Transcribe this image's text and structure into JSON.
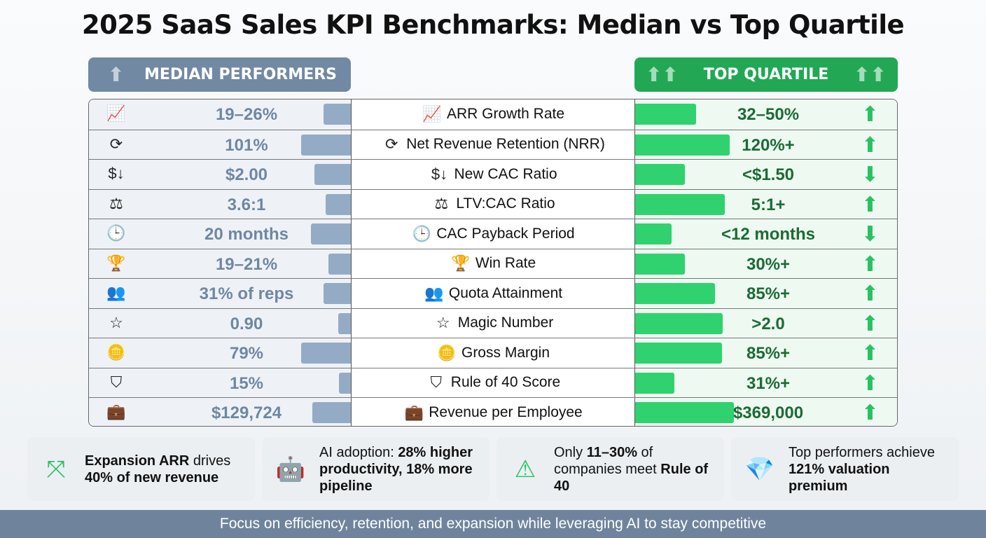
{
  "title": "2025 SaaS Sales KPI Benchmarks: Median vs Top Quartile",
  "headers": {
    "median": "MEDIAN PERFORMERS",
    "top": "TOP QUARTILE"
  },
  "colors": {
    "median": "#7289a3",
    "top": "#22a855",
    "median_bar": "#94abc5",
    "top_bar": "#2fd26f"
  },
  "rows": [
    {
      "icon": "growth-chart-icon",
      "glyph": "📈",
      "metric": "ARR Growth Rate",
      "median": "19–26%",
      "median_bar": 0.28,
      "top": "32–50%",
      "top_bar": 0.62,
      "direction": "up"
    },
    {
      "icon": "refresh-icon",
      "glyph": "⟳",
      "metric": "Net Revenue Retention (NRR)",
      "median": "101%",
      "median_bar": 0.51,
      "top": "120%+",
      "top_bar": 0.96,
      "direction": "up"
    },
    {
      "icon": "dollar-down-icon",
      "glyph": "$↓",
      "metric": "New CAC Ratio",
      "median": "$2.00",
      "median_bar": 0.37,
      "top": "<$1.50",
      "top_bar": 0.5,
      "direction": "down"
    },
    {
      "icon": "scale-icon",
      "glyph": "⚖",
      "metric": "LTV:CAC Ratio",
      "median": "3.6:1",
      "median_bar": 0.26,
      "top": "5:1+",
      "top_bar": 0.91,
      "direction": "up"
    },
    {
      "icon": "clock-calendar-icon",
      "glyph": "🕒",
      "metric": "CAC Payback Period",
      "median": "20 months",
      "median_bar": 0.41,
      "top": "<12 months",
      "top_bar": 0.37,
      "direction": "down"
    },
    {
      "icon": "trophy-icon",
      "glyph": "🏆",
      "metric": "Win Rate",
      "median": "19–21%",
      "median_bar": 0.23,
      "top": "30%+",
      "top_bar": 0.5,
      "direction": "up"
    },
    {
      "icon": "team-target-icon",
      "glyph": "👥",
      "metric": "Quota Attainment",
      "median": "31% of reps",
      "median_bar": 0.28,
      "top": "85%+",
      "top_bar": 0.81,
      "direction": "up"
    },
    {
      "icon": "magic-star-icon",
      "glyph": "☆",
      "metric": "Magic Number",
      "median": "0.90",
      "median_bar": 0.13,
      "top": ">2.0",
      "top_bar": 0.89,
      "direction": "up"
    },
    {
      "icon": "coins-icon",
      "glyph": "🪙",
      "metric": "Gross Margin",
      "median": "79%",
      "median_bar": 0.51,
      "top": "85%+",
      "top_bar": 0.88,
      "direction": "up"
    },
    {
      "icon": "shield-40-icon",
      "glyph": "⛉",
      "metric": "Rule of 40 Score",
      "median": "15%",
      "median_bar": 0.12,
      "top": "31%+",
      "top_bar": 0.4,
      "direction": "up"
    },
    {
      "icon": "briefcase-dollar-icon",
      "glyph": "💼",
      "metric": "Revenue per Employee",
      "median": "$129,724",
      "median_bar": 0.39,
      "top": "$369,000",
      "top_bar": 1.0,
      "direction": "up"
    }
  ],
  "cards": [
    {
      "icon": "expand-arrows-icon",
      "glyph": "⤧",
      "parts": [
        [
          "b",
          "Expansion ARR"
        ],
        [
          "n",
          " drives "
        ],
        [
          "b",
          "40% of new revenue"
        ]
      ]
    },
    {
      "icon": "robot-brain-icon",
      "glyph": "🤖",
      "parts": [
        [
          "n",
          "AI adoption: "
        ],
        [
          "b",
          "28% higher productivity, 18% more pipeline"
        ]
      ]
    },
    {
      "icon": "warning-icon",
      "glyph": "⚠",
      "parts": [
        [
          "n",
          "Only "
        ],
        [
          "b",
          "11–30%"
        ],
        [
          "n",
          " of companies meet "
        ],
        [
          "b",
          "Rule of 40"
        ]
      ]
    },
    {
      "icon": "diamond-icon",
      "glyph": "💎",
      "parts": [
        [
          "n",
          "Top performers achieve "
        ],
        [
          "b",
          "121% valuation premium"
        ]
      ]
    }
  ],
  "footer": "Focus on efficiency, retention, and expansion while leveraging AI to stay competitive"
}
